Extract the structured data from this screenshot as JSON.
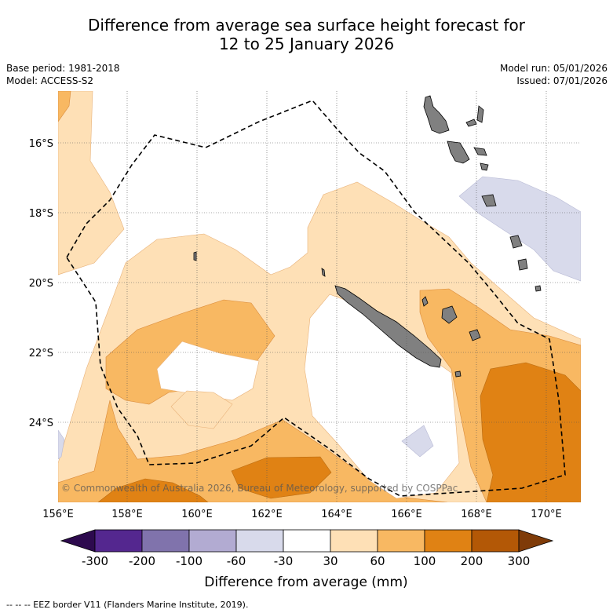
{
  "title": {
    "line1": "Difference from average sea surface height forecast for",
    "line2": "12 to 25 January 2026"
  },
  "meta": {
    "base_period": "Base period: 1981-2018",
    "model": "Model: ACCESS-S2",
    "model_run": "Model run: 05/01/2026",
    "issued": "Issued: 07/01/2026"
  },
  "map": {
    "lat_labels": [
      "16°S",
      "18°S",
      "20°S",
      "22°S",
      "24°S"
    ],
    "lon_labels": [
      "156°E",
      "158°E",
      "160°E",
      "162°E",
      "164°E",
      "166°E",
      "168°E",
      "170°E"
    ],
    "copyright": "© Commonwealth of Australia 2026, Bureau of Meteorology, supported by COSPPac"
  },
  "colorbar": {
    "ticks": [
      "-300",
      "-200",
      "-100",
      "-60",
      "-30",
      "30",
      "60",
      "100",
      "200",
      "300"
    ],
    "colors": [
      "#2d0a4e",
      "#54278f",
      "#8073ac",
      "#b2abd2",
      "#d8daeb",
      "#ffffff",
      "#fee0b6",
      "#f8b862",
      "#e08214",
      "#b35806",
      "#7f3b08"
    ],
    "title": "Difference from average (mm)"
  },
  "legend": {
    "eez_text": "-- -- -- EEZ border V11 (Flanders Marine Institute, 2019)."
  }
}
